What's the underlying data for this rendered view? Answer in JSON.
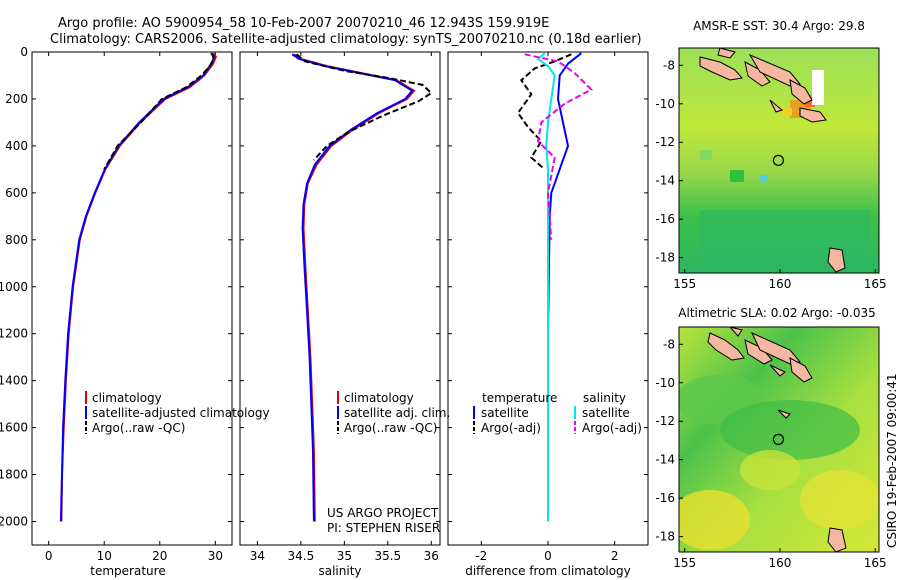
{
  "header": {
    "line1": "Argo profile: AO 5900954_58 10-Feb-2007 20070210_46 12.943S 159.919E",
    "line2": "Climatology: CARS2006. Satellite-adjusted climatology: synTS_20070210.nc (0.18d earlier)"
  },
  "credit": {
    "project": "US ARGO PROJECT",
    "pi": "PI: STEPHEN RISER",
    "side": "CSIRO 19-Feb-2007 09:00:41"
  },
  "colors": {
    "clim": "#dd0000",
    "sat": "#0000ff",
    "argo": "#000000",
    "sat_sal": "#00e5ee",
    "argo_sal": "#ee00ee"
  },
  "chart_data": [
    {
      "type": "line",
      "name": "temperature-profile",
      "xlabel": "temperature",
      "ylabel": "",
      "xlim": [
        -3,
        33
      ],
      "ylim": [
        2100,
        0
      ],
      "y_inverted": true,
      "xticks": [
        0,
        10,
        20,
        30
      ],
      "yticks": [
        0,
        200,
        400,
        600,
        800,
        1000,
        1200,
        1400,
        1600,
        1800,
        2000
      ],
      "legend": [
        "climatology",
        "satellite-adjusted climatology",
        "Argo(..raw -QC)"
      ],
      "series": [
        {
          "name": "climatology",
          "style": "clim",
          "points": [
            [
              29.6,
              5
            ],
            [
              30.1,
              20
            ],
            [
              29.6,
              50
            ],
            [
              28.0,
              100
            ],
            [
              25.4,
              150
            ],
            [
              21.0,
              200
            ],
            [
              16.5,
              300
            ],
            [
              12.8,
              400
            ],
            [
              10.2,
              500
            ],
            [
              8.4,
              600
            ],
            [
              6.8,
              700
            ],
            [
              5.6,
              800
            ],
            [
              4.4,
              1000
            ],
            [
              3.6,
              1200
            ],
            [
              3.1,
              1400
            ],
            [
              2.7,
              1600
            ],
            [
              2.4,
              1800
            ],
            [
              2.3,
              2000
            ]
          ]
        },
        {
          "name": "satellite-adjusted climatology",
          "style": "sat",
          "points": [
            [
              29.2,
              5
            ],
            [
              29.8,
              20
            ],
            [
              29.3,
              50
            ],
            [
              27.8,
              100
            ],
            [
              25.0,
              150
            ],
            [
              20.7,
              200
            ],
            [
              16.3,
              300
            ],
            [
              12.6,
              400
            ],
            [
              10.1,
              500
            ],
            [
              8.3,
              600
            ],
            [
              6.7,
              700
            ],
            [
              5.5,
              800
            ],
            [
              4.3,
              1000
            ],
            [
              3.5,
              1200
            ],
            [
              3.0,
              1400
            ],
            [
              2.6,
              1600
            ],
            [
              2.4,
              1800
            ],
            [
              2.2,
              2000
            ]
          ]
        },
        {
          "name": "Argo(..raw -QC)",
          "style": "argo",
          "points": [
            [
              29.4,
              5
            ],
            [
              29.7,
              30
            ],
            [
              29.0,
              60
            ],
            [
              27.5,
              100
            ],
            [
              24.8,
              150
            ],
            [
              20.4,
              200
            ],
            [
              16.6,
              300
            ],
            [
              12.4,
              400
            ],
            [
              10.0,
              500
            ]
          ]
        }
      ]
    },
    {
      "type": "line",
      "name": "salinity-profile",
      "xlabel": "salinity",
      "ylabel": "",
      "xlim": [
        33.8,
        36.1
      ],
      "ylim": [
        2100,
        0
      ],
      "y_inverted": true,
      "xticks": [
        34,
        34.5,
        35,
        35.5,
        36
      ],
      "yticks": [
        0,
        200,
        400,
        600,
        800,
        1000,
        1200,
        1400,
        1600,
        1800,
        2000
      ],
      "legend": [
        "climatology",
        "satellite adj. clim.",
        "Argo(..raw -QC)"
      ],
      "series": [
        {
          "name": "climatology",
          "style": "clim",
          "points": [
            [
              34.42,
              10
            ],
            [
              34.5,
              30
            ],
            [
              34.8,
              60
            ],
            [
              35.2,
              90
            ],
            [
              35.6,
              120
            ],
            [
              35.8,
              165
            ],
            [
              35.72,
              200
            ],
            [
              35.4,
              260
            ],
            [
              35.1,
              330
            ],
            [
              34.85,
              400
            ],
            [
              34.68,
              480
            ],
            [
              34.58,
              560
            ],
            [
              34.54,
              650
            ],
            [
              34.53,
              750
            ],
            [
              34.55,
              900
            ],
            [
              34.58,
              1100
            ],
            [
              34.61,
              1300
            ],
            [
              34.63,
              1500
            ],
            [
              34.65,
              1700
            ],
            [
              34.66,
              2000
            ]
          ]
        },
        {
          "name": "satellite adj. clim.",
          "style": "sat",
          "points": [
            [
              34.4,
              10
            ],
            [
              34.48,
              30
            ],
            [
              34.78,
              60
            ],
            [
              35.18,
              90
            ],
            [
              35.58,
              120
            ],
            [
              35.78,
              165
            ],
            [
              35.7,
              200
            ],
            [
              35.38,
              260
            ],
            [
              35.08,
              330
            ],
            [
              34.83,
              400
            ],
            [
              34.66,
              480
            ],
            [
              34.57,
              560
            ],
            [
              34.53,
              650
            ],
            [
              34.52,
              750
            ],
            [
              34.54,
              900
            ],
            [
              34.57,
              1100
            ],
            [
              34.6,
              1300
            ],
            [
              34.62,
              1500
            ],
            [
              34.64,
              1700
            ],
            [
              34.65,
              2000
            ]
          ]
        },
        {
          "name": "Argo(..raw -QC)",
          "style": "argo",
          "points": [
            [
              34.45,
              10
            ],
            [
              34.55,
              40
            ],
            [
              35.0,
              80
            ],
            [
              35.5,
              110
            ],
            [
              35.9,
              140
            ],
            [
              36.0,
              175
            ],
            [
              35.85,
              210
            ],
            [
              35.45,
              270
            ],
            [
              35.05,
              340
            ],
            [
              34.8,
              400
            ],
            [
              34.65,
              460
            ]
          ]
        }
      ]
    },
    {
      "type": "line",
      "name": "difference-profile",
      "xlabel": "difference from climatology",
      "ylabel": "",
      "xlim": [
        -3,
        3
      ],
      "ylim": [
        2100,
        0
      ],
      "y_inverted": true,
      "xticks": [
        -2,
        0,
        2
      ],
      "yticks": [
        0,
        200,
        400,
        600,
        800,
        1000,
        1200,
        1400,
        1600,
        1800,
        2000
      ],
      "legend": [
        "temperature",
        "satellite",
        "Argo(-adj)",
        "salinity",
        "satellite",
        "Argo(-adj)"
      ],
      "series": [
        {
          "name": "temperature satellite",
          "style": "sat",
          "points": [
            [
              1.0,
              5
            ],
            [
              0.6,
              50
            ],
            [
              0.35,
              100
            ],
            [
              0.3,
              200
            ],
            [
              0.45,
              300
            ],
            [
              0.6,
              400
            ],
            [
              0.4,
              480
            ],
            [
              0.1,
              600
            ],
            [
              0.05,
              700
            ],
            [
              0.03,
              900
            ],
            [
              0.0,
              1200
            ],
            [
              0.0,
              2000
            ]
          ]
        },
        {
          "name": "temperature Argo(-adj)",
          "style": "argo",
          "points": [
            [
              0.7,
              10
            ],
            [
              0.2,
              40
            ],
            [
              -0.4,
              70
            ],
            [
              -0.8,
              120
            ],
            [
              -0.5,
              180
            ],
            [
              -0.9,
              260
            ],
            [
              -0.6,
              320
            ],
            [
              -0.2,
              380
            ],
            [
              -0.5,
              450
            ],
            [
              -0.1,
              500
            ]
          ]
        },
        {
          "name": "salinity satellite",
          "style": "sat_sal",
          "points": [
            [
              -0.1,
              5
            ],
            [
              -0.3,
              30
            ],
            [
              0.0,
              60
            ],
            [
              0.2,
              100
            ],
            [
              0.1,
              200
            ],
            [
              0.0,
              300
            ],
            [
              -0.05,
              400
            ],
            [
              0.0,
              500
            ],
            [
              0.0,
              800
            ],
            [
              0.0,
              2000
            ]
          ]
        },
        {
          "name": "salinity Argo(-adj)",
          "style": "argo_sal",
          "points": [
            [
              -0.7,
              10
            ],
            [
              0.3,
              40
            ],
            [
              0.8,
              90
            ],
            [
              1.3,
              160
            ],
            [
              0.5,
              220
            ],
            [
              -0.2,
              300
            ],
            [
              -0.3,
              380
            ],
            [
              0.2,
              450
            ],
            [
              0.0,
              600
            ],
            [
              0.1,
              800
            ]
          ]
        }
      ]
    },
    {
      "type": "heatmap",
      "name": "amsre-sst-map",
      "title": "AMSR-E SST: 30.4  Argo: 29.8",
      "xlim": [
        154.7,
        165.2
      ],
      "ylim": [
        -18.8,
        -7.1
      ],
      "xticks": [
        155,
        160,
        165
      ],
      "yticks": [
        -8,
        -10,
        -12,
        -14,
        -16,
        -18
      ],
      "float_position": [
        159.919,
        -12.943
      ]
    },
    {
      "type": "heatmap",
      "name": "altimetric-sla-map",
      "title": "Altimetric SLA: 0.02  Argo: -0.035",
      "xlim": [
        154.7,
        165.2
      ],
      "ylim": [
        -18.8,
        -7.1
      ],
      "xticks": [
        155,
        160,
        165
      ],
      "yticks": [
        -8,
        -10,
        -12,
        -14,
        -16,
        -18
      ],
      "float_position": [
        159.919,
        -12.943
      ]
    }
  ]
}
